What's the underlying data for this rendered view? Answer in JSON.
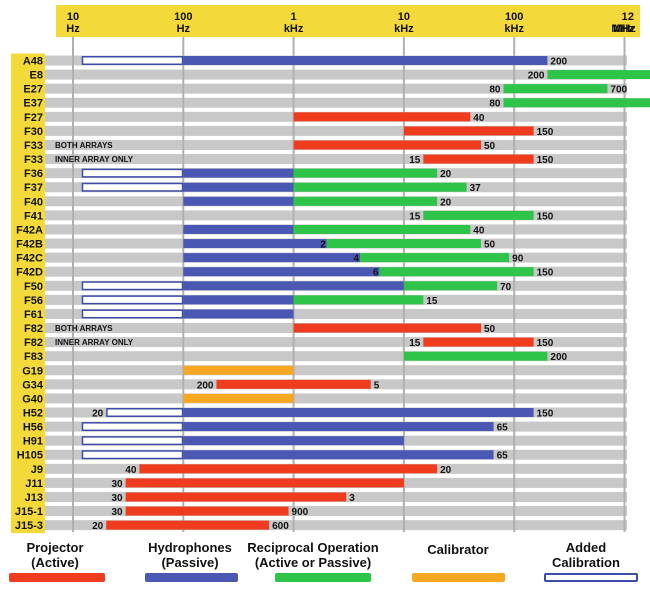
{
  "chart_data": {
    "type": "bar",
    "subtype": "floating-range-bars (frequency coverage per transducer)",
    "x_scale": "log",
    "x_unit": "Hz",
    "xlim_hz": [
      10,
      2000000
    ],
    "ticks": [
      {
        "hz": 10,
        "line1": "10",
        "line2": "Hz"
      },
      {
        "hz": 100,
        "line1": "100",
        "line2": "Hz"
      },
      {
        "hz": 1000,
        "line1": "1",
        "line2": "kHz"
      },
      {
        "hz": 10000,
        "line1": "10",
        "line2": "kHz"
      },
      {
        "hz": 100000,
        "line1": "100",
        "line2": "kHz"
      },
      {
        "hz": 1000000,
        "line1": "1",
        "line2": "MHz"
      },
      {
        "hz": 2000000,
        "line1": "2",
        "line2": "MHz"
      }
    ],
    "colors": {
      "projector": "#f03c1e",
      "hydrophone": "#4a58b4",
      "reciprocal": "#2ec44a",
      "calibrator": "#f7a823",
      "added": "#ffffff",
      "added_border": "#3d4ca8",
      "header": "#f4d93a",
      "row_stripe": "#c8c8c8"
    },
    "series": [
      {
        "key": "projector",
        "name": "Projector (Active)",
        "name_line1": "Projector",
        "name_line2": "(Active)",
        "color": "#f03c1e"
      },
      {
        "key": "hydrophone",
        "name": "Hydrophones (Passive)",
        "name_line1": "Hydrophones",
        "name_line2": "(Passive)",
        "color": "#4a58b4"
      },
      {
        "key": "reciprocal",
        "name": "Reciprocal Operation (Active or Passive)",
        "name_line1": "Reciprocal Operation",
        "name_line2": "(Active or Passive)",
        "color": "#2ec44a"
      },
      {
        "key": "calibrator",
        "name": "Calibrator",
        "name_line1": "Calibrator",
        "name_line2": "",
        "color": "#f7a823"
      },
      {
        "key": "added",
        "name": "Added Calibration",
        "name_line1": "Added",
        "name_line2": "Calibration",
        "color": "#ffffff"
      }
    ],
    "rows": [
      {
        "name": "A48",
        "segments": [
          {
            "type": "added",
            "from": 12,
            "to": 100
          },
          {
            "type": "hydrophone",
            "from": 100,
            "to": 200000
          }
        ],
        "end_label": "200"
      },
      {
        "name": "E8",
        "segments": [
          {
            "type": "reciprocal",
            "from": 200000,
            "to": 2000000
          }
        ],
        "start_label": "200"
      },
      {
        "name": "E27",
        "segments": [
          {
            "type": "reciprocal",
            "from": 80000,
            "to": 700000
          }
        ],
        "start_label": "80",
        "end_label": "700"
      },
      {
        "name": "E37",
        "segments": [
          {
            "type": "reciprocal",
            "from": 80000,
            "to": 2000000
          }
        ],
        "start_label": "80"
      },
      {
        "name": "F27",
        "segments": [
          {
            "type": "projector",
            "from": 1000,
            "to": 40000
          }
        ],
        "end_label": "40"
      },
      {
        "name": "F30",
        "segments": [
          {
            "type": "projector",
            "from": 10000,
            "to": 150000
          }
        ],
        "end_label": "150"
      },
      {
        "name": "F33",
        "note": "BOTH ARRAYS",
        "segments": [
          {
            "type": "projector",
            "from": 1000,
            "to": 50000
          }
        ],
        "end_label": "50"
      },
      {
        "name": "F33",
        "note": "INNER ARRAY ONLY",
        "segments": [
          {
            "type": "projector",
            "from": 15000,
            "to": 150000
          }
        ],
        "start_label": "15",
        "end_label": "150"
      },
      {
        "name": "F36",
        "segments": [
          {
            "type": "added",
            "from": 12,
            "to": 100
          },
          {
            "type": "hydrophone",
            "from": 100,
            "to": 1000
          },
          {
            "type": "reciprocal",
            "from": 1000,
            "to": 20000
          }
        ],
        "end_label": "20"
      },
      {
        "name": "F37",
        "segments": [
          {
            "type": "added",
            "from": 12,
            "to": 100
          },
          {
            "type": "hydrophone",
            "from": 100,
            "to": 1000
          },
          {
            "type": "reciprocal",
            "from": 1000,
            "to": 37000
          }
        ],
        "end_label": "37"
      },
      {
        "name": "F40",
        "segments": [
          {
            "type": "hydrophone",
            "from": 100,
            "to": 1000
          },
          {
            "type": "reciprocal",
            "from": 1000,
            "to": 20000
          }
        ],
        "end_label": "20"
      },
      {
        "name": "F41",
        "segments": [
          {
            "type": "reciprocal",
            "from": 15000,
            "to": 150000
          }
        ],
        "start_label": "15",
        "end_label": "150"
      },
      {
        "name": "F42A",
        "segments": [
          {
            "type": "hydrophone",
            "from": 100,
            "to": 1000
          },
          {
            "type": "reciprocal",
            "from": 1000,
            "to": 40000
          }
        ],
        "end_label": "40"
      },
      {
        "name": "F42B",
        "segments": [
          {
            "type": "hydrophone",
            "from": 100,
            "to": 2000
          },
          {
            "type": "reciprocal",
            "from": 2000,
            "to": 50000
          }
        ],
        "mid_label": "2",
        "end_label": "50"
      },
      {
        "name": "F42C",
        "segments": [
          {
            "type": "hydrophone",
            "from": 100,
            "to": 4000
          },
          {
            "type": "reciprocal",
            "from": 4000,
            "to": 90000
          }
        ],
        "mid_label": "4",
        "end_label": "90"
      },
      {
        "name": "F42D",
        "segments": [
          {
            "type": "hydrophone",
            "from": 100,
            "to": 6000
          },
          {
            "type": "reciprocal",
            "from": 6000,
            "to": 150000
          }
        ],
        "mid_label": "6",
        "end_label": "150"
      },
      {
        "name": "F50",
        "segments": [
          {
            "type": "added",
            "from": 12,
            "to": 100
          },
          {
            "type": "hydrophone",
            "from": 100,
            "to": 10000
          },
          {
            "type": "reciprocal",
            "from": 10000,
            "to": 70000
          }
        ],
        "end_label": "70"
      },
      {
        "name": "F56",
        "segments": [
          {
            "type": "added",
            "from": 12,
            "to": 100
          },
          {
            "type": "hydrophone",
            "from": 100,
            "to": 1000
          },
          {
            "type": "reciprocal",
            "from": 1000,
            "to": 15000
          }
        ],
        "end_label": "15"
      },
      {
        "name": "F61",
        "segments": [
          {
            "type": "added",
            "from": 12,
            "to": 100
          },
          {
            "type": "hydrophone",
            "from": 100,
            "to": 1000
          }
        ]
      },
      {
        "name": "F82",
        "note": "BOTH ARRAYS",
        "segments": [
          {
            "type": "projector",
            "from": 1000,
            "to": 50000
          }
        ],
        "end_label": "50"
      },
      {
        "name": "F82",
        "note": "INNER ARRAY ONLY",
        "segments": [
          {
            "type": "projector",
            "from": 15000,
            "to": 150000
          }
        ],
        "start_label": "15",
        "end_label": "150"
      },
      {
        "name": "F83",
        "segments": [
          {
            "type": "reciprocal",
            "from": 10000,
            "to": 200000
          }
        ],
        "end_label": "200"
      },
      {
        "name": "G19",
        "segments": [
          {
            "type": "calibrator",
            "from": 100,
            "to": 1000
          }
        ]
      },
      {
        "name": "G34",
        "segments": [
          {
            "type": "projector",
            "from": 200,
            "to": 5000
          }
        ],
        "start_label": "200",
        "end_label": "5"
      },
      {
        "name": "G40",
        "segments": [
          {
            "type": "calibrator",
            "from": 100,
            "to": 1000
          }
        ]
      },
      {
        "name": "H52",
        "segments": [
          {
            "type": "added",
            "from": 20,
            "to": 100
          },
          {
            "type": "hydrophone",
            "from": 100,
            "to": 150000
          }
        ],
        "start_label": "20",
        "end_label": "150"
      },
      {
        "name": "H56",
        "segments": [
          {
            "type": "added",
            "from": 12,
            "to": 100
          },
          {
            "type": "hydrophone",
            "from": 100,
            "to": 65000
          }
        ],
        "end_label": "65"
      },
      {
        "name": "H91",
        "segments": [
          {
            "type": "added",
            "from": 12,
            "to": 100
          },
          {
            "type": "hydrophone",
            "from": 100,
            "to": 10000
          }
        ]
      },
      {
        "name": "H105",
        "segments": [
          {
            "type": "added",
            "from": 12,
            "to": 100
          },
          {
            "type": "hydrophone",
            "from": 100,
            "to": 65000
          }
        ],
        "end_label": "65"
      },
      {
        "name": "J9",
        "segments": [
          {
            "type": "projector",
            "from": 40,
            "to": 20000
          }
        ],
        "start_label": "40",
        "end_label": "20"
      },
      {
        "name": "J11",
        "segments": [
          {
            "type": "projector",
            "from": 30,
            "to": 10000
          }
        ],
        "start_label": "30"
      },
      {
        "name": "J13",
        "segments": [
          {
            "type": "projector",
            "from": 30,
            "to": 3000
          }
        ],
        "start_label": "30",
        "end_label": "3"
      },
      {
        "name": "J15-1",
        "segments": [
          {
            "type": "projector",
            "from": 30,
            "to": 900
          }
        ],
        "start_label": "30",
        "end_label": "900"
      },
      {
        "name": "J15-3",
        "segments": [
          {
            "type": "projector",
            "from": 20,
            "to": 600
          }
        ],
        "start_label": "20",
        "end_label": "600"
      }
    ]
  }
}
